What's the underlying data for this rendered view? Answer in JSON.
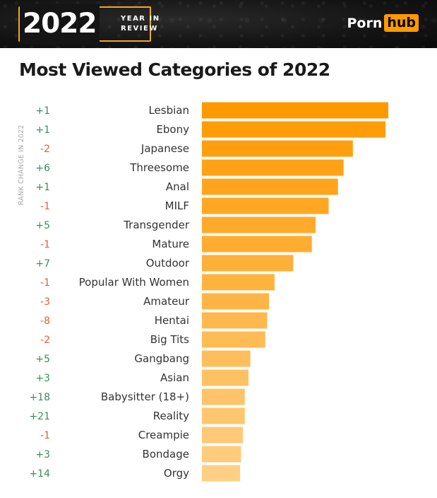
{
  "header": {
    "year": "2022",
    "year_sub_line1": "YEAR IN",
    "year_sub_line2": "REVIEW",
    "logo_part1": "Porn",
    "logo_part2": "hub"
  },
  "title": "Most Viewed Categories of 2022",
  "colors": {
    "banner": "#141414",
    "accent": "#ff9900",
    "positive": "#3a8f5a",
    "negative": "#e2603a",
    "bar_top": "#ff9900",
    "bar_bottom": "#ffcf85"
  },
  "chart_data": {
    "type": "bar",
    "orientation": "horizontal",
    "title": "Most Viewed Categories of 2022",
    "side_label": "RANK CHANGE IN 2022",
    "categories": [
      "Lesbian",
      "Ebony",
      "Japanese",
      "Threesome",
      "Anal",
      "MILF",
      "Transgender",
      "Mature",
      "Outdoor",
      "Popular With Women",
      "Amateur",
      "Hentai",
      "Big Tits",
      "Gangbang",
      "Asian",
      "Babysitter (18+)",
      "Reality",
      "Creampie",
      "Bondage",
      "Orgy"
    ],
    "rank_change": [
      "+1",
      "+1",
      "-2",
      "+6",
      "+1",
      "-1",
      "+5",
      "-1",
      "+7",
      "-1",
      "-3",
      "-8",
      "-2",
      "+5",
      "+3",
      "+18",
      "+21",
      "-1",
      "+3",
      "+14"
    ],
    "values": [
      100,
      98.5,
      81,
      76,
      73,
      68,
      61,
      59,
      49,
      39,
      36,
      35,
      34,
      26,
      25,
      23,
      23,
      22,
      21,
      20.5
    ],
    "xlim": [
      0,
      100
    ],
    "grid": false,
    "legend": "none"
  }
}
